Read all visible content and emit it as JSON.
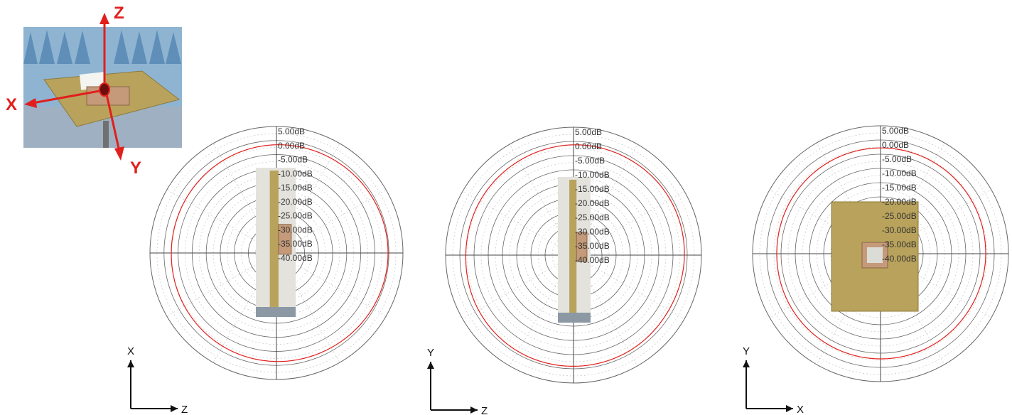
{
  "colors": {
    "pattern": "#e0201c",
    "ring": "#666666",
    "inner_grid": "#bbbbbb",
    "axis": "#444444",
    "photo_axis": "#e0201c",
    "board_gold": "#b9a35c",
    "patch_copper": "#c49a7a"
  },
  "setup_photo": {
    "axis_labels": {
      "z": "Z",
      "x": "X",
      "y": "Y"
    }
  },
  "chart_data": [
    {
      "type": "polar",
      "radial_unit": "dB",
      "radial_range": [
        -40,
        5
      ],
      "ring_labels": [
        "5.00dB",
        "0.00dB",
        "-5.00dB",
        "-10.00dB",
        "-15.00dB",
        "-20.00dB",
        "-25.00dB",
        "-30.00dB",
        "-35.00dB",
        "-40.00dB"
      ],
      "angles_deg": [
        0,
        30,
        60,
        90,
        120,
        150,
        180,
        210,
        240,
        270,
        300,
        330
      ],
      "series": [
        {
          "values_db": [
            -1.5,
            -1.1,
            -0.6,
            -0.3,
            -0.6,
            -1.1,
            -1.4,
            -1.7,
            -2.2,
            -2.6,
            -2.5,
            -2.0
          ]
        }
      ],
      "axes_indicator": {
        "vertical": "X",
        "horizontal": "Z"
      },
      "inset_photo": "side-view-board-patch"
    },
    {
      "type": "polar",
      "radial_unit": "dB",
      "radial_range": [
        -40,
        5
      ],
      "ring_labels": [
        "5.00dB",
        "0.00dB",
        "-5.00dB",
        "-10.00dB",
        "-15.00dB",
        "-20.00dB",
        "-25.00dB",
        "-30.00dB",
        "-35.00dB",
        "-40.00dB"
      ],
      "angles_deg": [
        0,
        30,
        60,
        90,
        120,
        150,
        180,
        210,
        240,
        270,
        300,
        330
      ],
      "series": [
        {
          "values_db": [
            -1.2,
            -1.0,
            -0.8,
            -1.0,
            -1.3,
            -1.0,
            -0.9,
            -0.9,
            -1.4,
            -2.1,
            -2.0,
            -1.7
          ]
        }
      ],
      "axes_indicator": {
        "vertical": "Y",
        "horizontal": "Z"
      },
      "inset_photo": "side-view-board-patch"
    },
    {
      "type": "polar",
      "radial_unit": "dB",
      "radial_range": [
        -40,
        5
      ],
      "ring_labels": [
        "5.00dB",
        "0.00dB",
        "-5.00dB",
        "-10.00dB",
        "-15.00dB",
        "-20.00dB",
        "-25.00dB",
        "-30.00dB",
        "-35.00dB",
        "-40.00dB"
      ],
      "angles_deg": [
        0,
        30,
        60,
        90,
        120,
        150,
        180,
        210,
        240,
        270,
        300,
        330
      ],
      "series": [
        {
          "values_db": [
            -2.8,
            -2.8,
            -2.9,
            -3.0,
            -3.1,
            -3.0,
            -3.0,
            -3.1,
            -3.3,
            -3.5,
            -3.3,
            -3.0
          ]
        }
      ],
      "axes_indicator": {
        "vertical": "Y",
        "horizontal": "X"
      },
      "inset_photo": "top-view-board-patch"
    }
  ]
}
